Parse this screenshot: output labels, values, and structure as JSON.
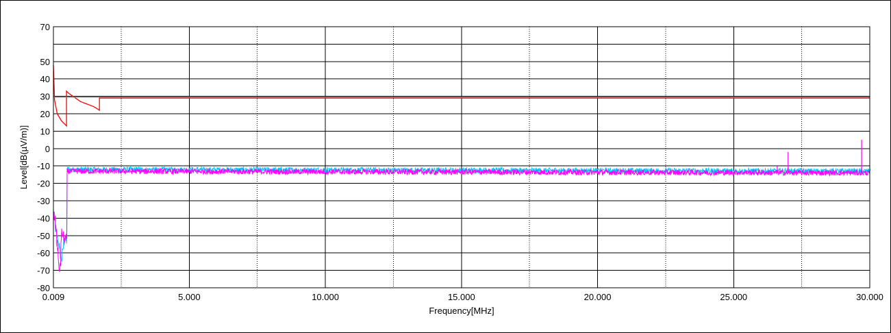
{
  "chart_data": {
    "type": "line",
    "xlabel": "Frequency[MHz]",
    "ylabel": "Level[dB(µV/m)]",
    "xlim": [
      0.009,
      30.0
    ],
    "ylim": [
      -80,
      70
    ],
    "x_ticks": [
      0.009,
      5.0,
      10.0,
      15.0,
      20.0,
      25.0,
      30.0
    ],
    "x_tick_labels": [
      "0.009",
      "5.000",
      "10.000",
      "15.000",
      "20.000",
      "25.000",
      "30.000"
    ],
    "y_ticks": [
      70,
      50,
      40,
      30,
      20,
      10,
      0,
      -10,
      -20,
      -30,
      -40,
      -50,
      -60,
      -70,
      -80
    ],
    "y_tick_labels": [
      "70",
      "50",
      "40",
      "30",
      "20",
      "10",
      "0",
      "-10",
      "-20",
      "-30",
      "-40",
      "-50",
      "-60",
      "-70",
      "-80"
    ],
    "grid": true,
    "series": [
      {
        "color": "#ff0000",
        "x": [
          0.009,
          0.05,
          0.15,
          0.3,
          0.49,
          0.49,
          0.55,
          1.0,
          1.5,
          1.7,
          1.7,
          30.0
        ],
        "y": [
          48,
          28,
          20,
          16,
          13,
          33,
          32,
          27,
          24,
          22,
          29,
          29
        ]
      },
      {
        "color": "#808080",
        "x": [
          0.009,
          30.0
        ],
        "y": [
          29.5,
          29.5
        ]
      },
      {
        "color": "#00c8ff",
        "x": [
          0.009,
          0.1,
          0.2,
          0.3,
          0.4,
          0.49,
          0.49,
          30.0
        ],
        "y": [
          -36,
          -48,
          -55,
          -65,
          -52,
          -53,
          -12,
          -13
        ]
      },
      {
        "color": "#ff00ff",
        "x": [
          0.009,
          0.1,
          0.2,
          0.25,
          0.3,
          0.4,
          0.49,
          0.49,
          30.0
        ],
        "y": [
          -36,
          -46,
          -68,
          -70,
          -48,
          -52,
          -52,
          -13,
          -14
        ],
        "spikes": [
          {
            "x": 27.0,
            "y": -2
          },
          {
            "x": 29.7,
            "y": 5
          },
          {
            "x": 26.6,
            "y": -10
          }
        ]
      }
    ]
  },
  "colors": {
    "grid_major": "#000000",
    "grid_dotted": "#000000",
    "background": "#ffffff"
  }
}
